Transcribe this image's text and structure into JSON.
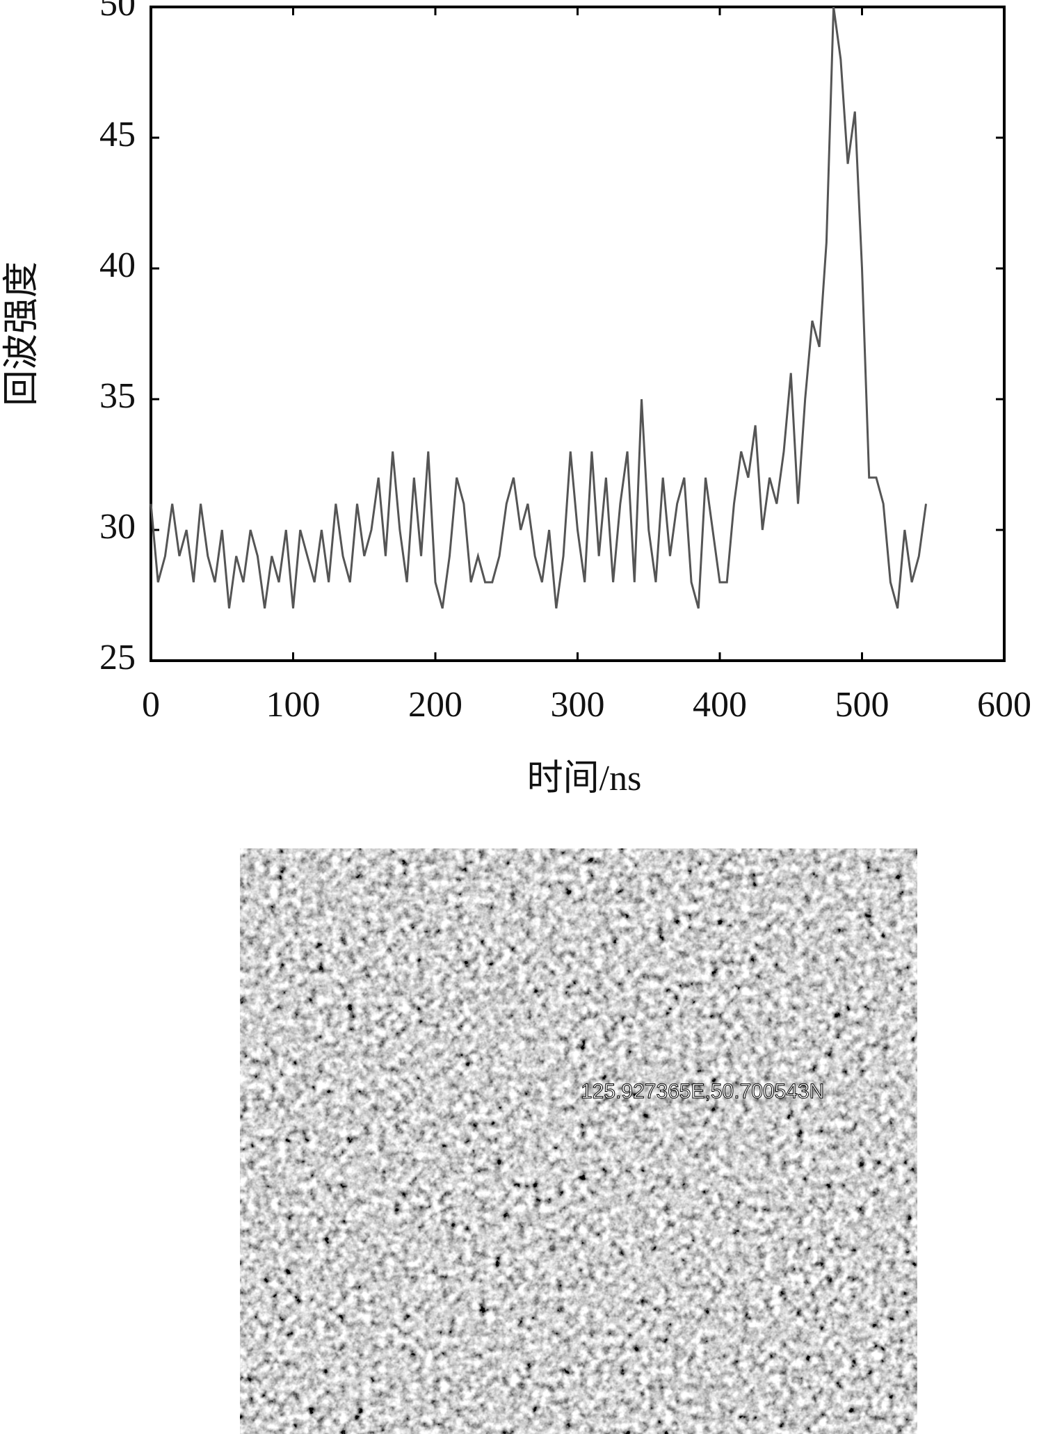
{
  "chart_data": {
    "type": "line",
    "xlabel": "时间/ns",
    "ylabel": "回波强度",
    "x": [
      0,
      5,
      10,
      15,
      20,
      25,
      30,
      35,
      40,
      45,
      50,
      55,
      60,
      65,
      70,
      75,
      80,
      85,
      90,
      95,
      100,
      105,
      110,
      115,
      120,
      125,
      130,
      135,
      140,
      145,
      150,
      155,
      160,
      165,
      170,
      175,
      180,
      185,
      190,
      195,
      200,
      205,
      210,
      215,
      220,
      225,
      230,
      235,
      240,
      245,
      250,
      255,
      260,
      265,
      270,
      275,
      280,
      285,
      290,
      295,
      300,
      305,
      310,
      315,
      320,
      325,
      330,
      335,
      340,
      345,
      350,
      355,
      360,
      365,
      370,
      375,
      380,
      385,
      390,
      395,
      400,
      405,
      410,
      415,
      420,
      425,
      430,
      435,
      440,
      445,
      450,
      455,
      460,
      465,
      470,
      475,
      480,
      485,
      490,
      495,
      500,
      505,
      510,
      515,
      520,
      525,
      530,
      535,
      540,
      545
    ],
    "series": [
      {
        "color": "#555555",
        "values": [
          31,
          28,
          29,
          31,
          29,
          30,
          28,
          31,
          29,
          28,
          30,
          27,
          29,
          28,
          30,
          29,
          27,
          29,
          28,
          30,
          27,
          30,
          29,
          28,
          30,
          28,
          31,
          29,
          28,
          31,
          29,
          30,
          32,
          29,
          33,
          30,
          28,
          32,
          29,
          33,
          28,
          27,
          29,
          32,
          31,
          28,
          29,
          28,
          28,
          29,
          31,
          32,
          30,
          31,
          29,
          28,
          30,
          27,
          29,
          33,
          30,
          28,
          33,
          29,
          32,
          28,
          31,
          33,
          28,
          35,
          30,
          28,
          32,
          29,
          31,
          32,
          28,
          27,
          32,
          30,
          28,
          28,
          31,
          33,
          32,
          34,
          30,
          32,
          31,
          33,
          36,
          31,
          35,
          38,
          37,
          41,
          50,
          48,
          44,
          46,
          40,
          32,
          32,
          31,
          28,
          27,
          30,
          28,
          29,
          31
        ]
      }
    ],
    "xlim": [
      0,
      600
    ],
    "xticks": [
      0,
      100,
      200,
      300,
      400,
      500,
      600
    ],
    "ylim": [
      25,
      50
    ],
    "yticks": [
      25,
      30,
      35,
      40,
      45,
      50
    ],
    "grid": false
  },
  "image": {
    "label": "125.927365E,50.700543N"
  }
}
